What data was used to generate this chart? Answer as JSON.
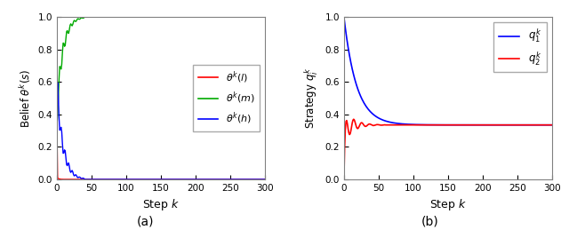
{
  "title_a": "(a)",
  "title_b": "(b)",
  "xlabel": "Step $k$",
  "ylabel_a": "Belief $\\theta^k(s)$",
  "ylabel_b": "Strategy $q_i^k$",
  "xlim": [
    0,
    300
  ],
  "ylim_a": [
    0,
    1.0
  ],
  "ylim_b": [
    0,
    1.0
  ],
  "xticks": [
    0,
    50,
    100,
    150,
    200,
    250,
    300
  ],
  "yticks_a": [
    0,
    0.2,
    0.4,
    0.6,
    0.8,
    1.0
  ],
  "yticks_b": [
    0,
    0.2,
    0.4,
    0.6,
    0.8,
    1.0
  ],
  "legend_a": [
    {
      "label": "$\\theta^k(l)$",
      "color": "#ff0000"
    },
    {
      "label": "$\\theta^k(m)$",
      "color": "#00aa00"
    },
    {
      "label": "$\\theta^k(h)$",
      "color": "#0000ff"
    }
  ],
  "legend_b": [
    {
      "label": "$q_1^k$",
      "color": "#0000ff"
    },
    {
      "label": "$q_2^k$",
      "color": "#ff0000"
    }
  ],
  "n_steps": 300,
  "background_color": "#ffffff",
  "figsize": [
    6.4,
    2.59
  ],
  "dpi": 100
}
